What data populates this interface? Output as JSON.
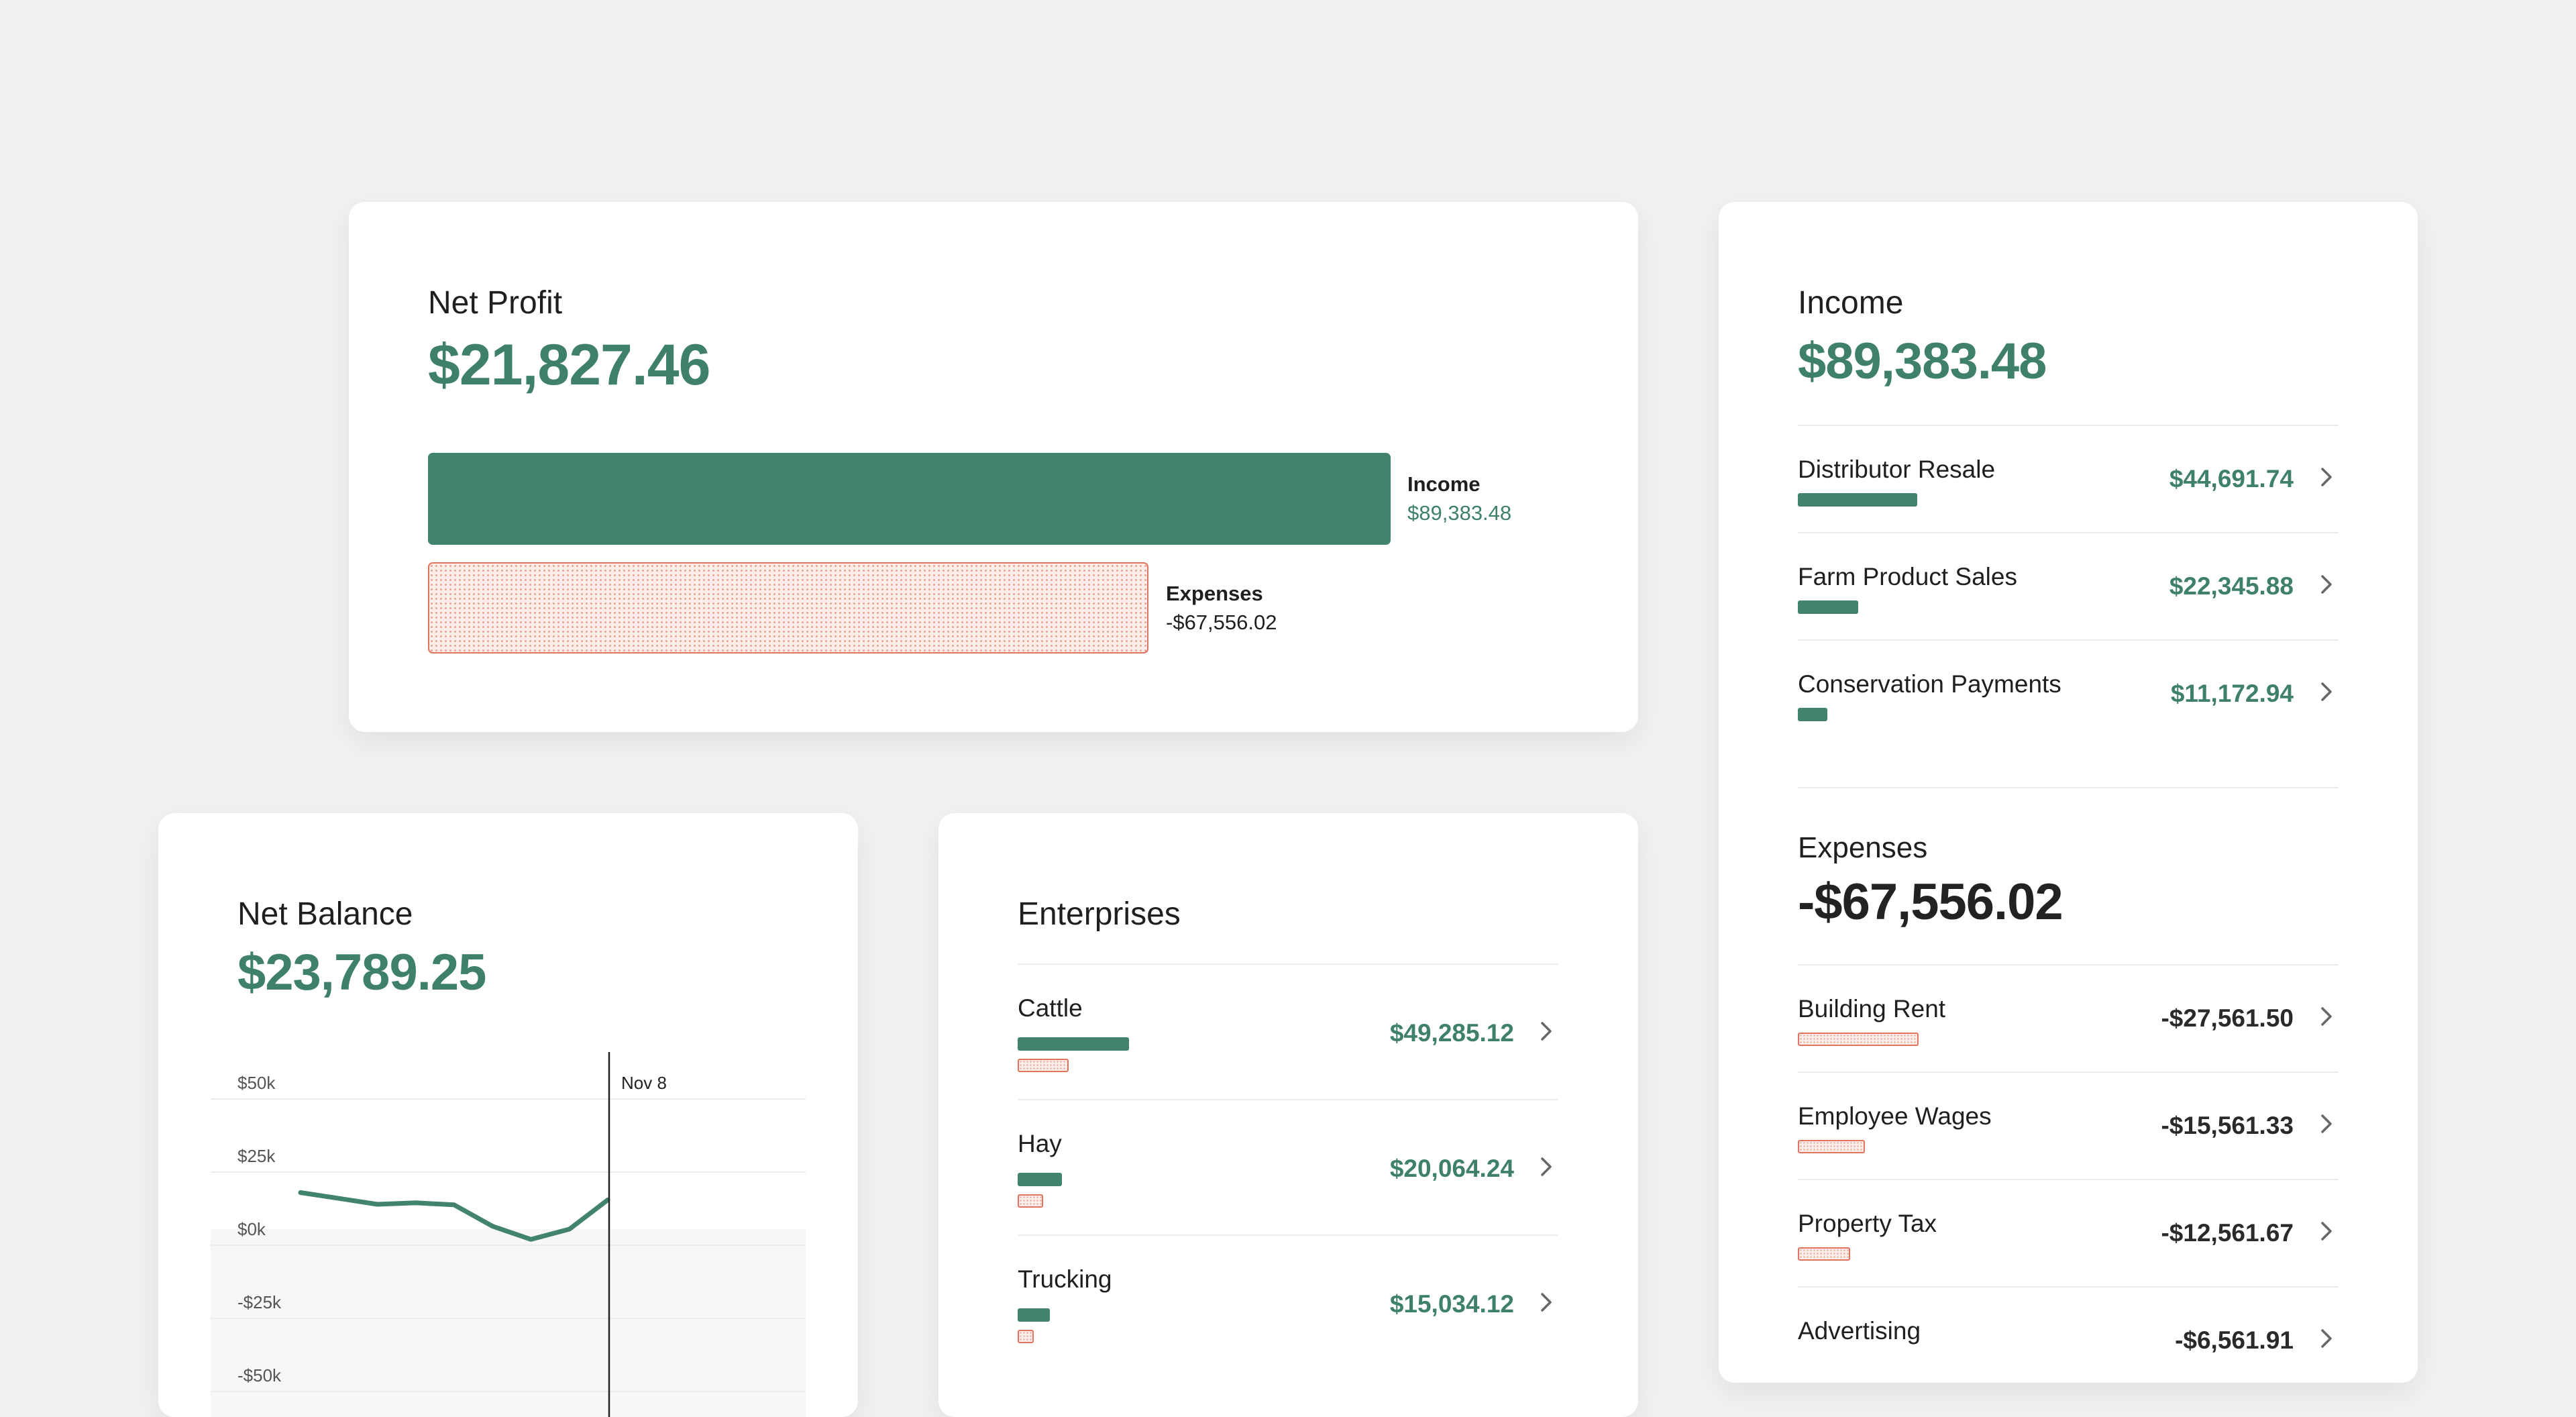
{
  "net_profit": {
    "title": "Net Profit",
    "amount": "$21,827.46",
    "income_label": "Income",
    "income_value": "$89,383.48",
    "expense_label": "Expenses",
    "expense_value": "-$67,556.02"
  },
  "income_card": {
    "income_title": "Income",
    "income_amount": "$89,383.48",
    "income_items": [
      {
        "label": "Distributor Resale",
        "value": "$44,691.74"
      },
      {
        "label": "Farm Product Sales",
        "value": "$22,345.88"
      },
      {
        "label": "Conservation Payments",
        "value": "$11,172.94"
      }
    ],
    "expense_title": "Expenses",
    "expense_amount": "-$67,556.02",
    "expense_items": [
      {
        "label": "Building Rent",
        "value": "-$27,561.50"
      },
      {
        "label": "Employee Wages",
        "value": "-$15,561.33"
      },
      {
        "label": "Property Tax",
        "value": "-$12,561.67"
      },
      {
        "label": "Advertising",
        "value": "-$6,561.91"
      }
    ]
  },
  "net_balance": {
    "title": "Net Balance",
    "amount": "$23,789.25"
  },
  "enterprises": {
    "title": "Enterprises",
    "items": [
      {
        "label": "Cattle",
        "value": "$49,285.12"
      },
      {
        "label": "Hay",
        "value": "$20,064.24"
      },
      {
        "label": "Trucking",
        "value": "$15,034.12"
      }
    ]
  },
  "chart_data": {
    "type": "line",
    "title": "",
    "xlabel": "",
    "ylabel": "",
    "y_ticks": [
      "$50k",
      "$25k",
      "$0k",
      "-$25k",
      "-$50k"
    ],
    "ylim": [
      -50000,
      50000
    ],
    "marker_label": "Nov 8",
    "series": [
      {
        "values": [
          18000,
          16000,
          14000,
          14500,
          13800,
          6500,
          2000,
          5500,
          15500
        ]
      }
    ],
    "grid": true
  },
  "colors": {
    "accent_green": "#42836b",
    "amount_green": "#3e8068",
    "expense_red": "#e2745f",
    "background": "#f2f1f1"
  }
}
